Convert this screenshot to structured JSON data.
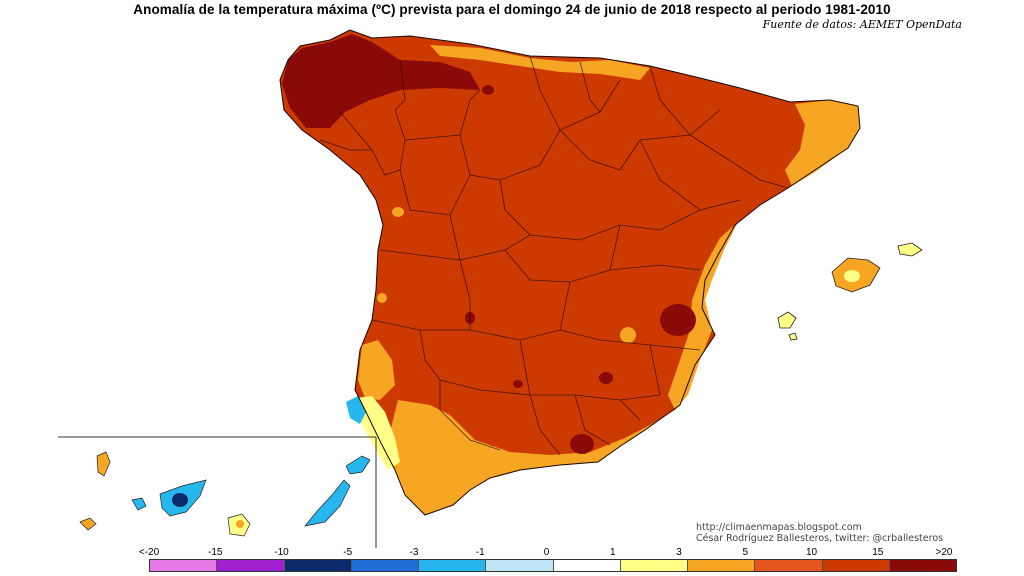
{
  "title": "Anomalía de la temperatura máxima (ºC) prevista para el domingo 24 de junio de 2018 respecto al periodo 1981-2010",
  "source": "Fuente de datos: AEMET OpenData",
  "credit": {
    "url": "http://climaenmapas.blogspot.com",
    "author": "César Rodríguez Ballesteros, twitter: @crballesteros"
  },
  "legend": {
    "tick_labels": [
      "<-20",
      "-15",
      "-10",
      "-5",
      "-3",
      "-1",
      "0",
      "1",
      "3",
      "5",
      "10",
      "15",
      ">20"
    ],
    "colors": [
      "#e37ae8",
      "#a020d0",
      "#0a2a6a",
      "#1f6fd6",
      "#26b7ee",
      "#bfe4f6",
      "#ffffff",
      "#ffff88",
      "#f6a623",
      "#e5561e",
      "#cc3a02",
      "#8a0a0a"
    ]
  },
  "map": {
    "base_color": "#cc3a02",
    "hot_color": "#8a0a0a",
    "warm_color": "#f6a623",
    "mild_color": "#ffff88",
    "cool_color": "#26b7ee",
    "cold_color": "#0a2a6a"
  }
}
